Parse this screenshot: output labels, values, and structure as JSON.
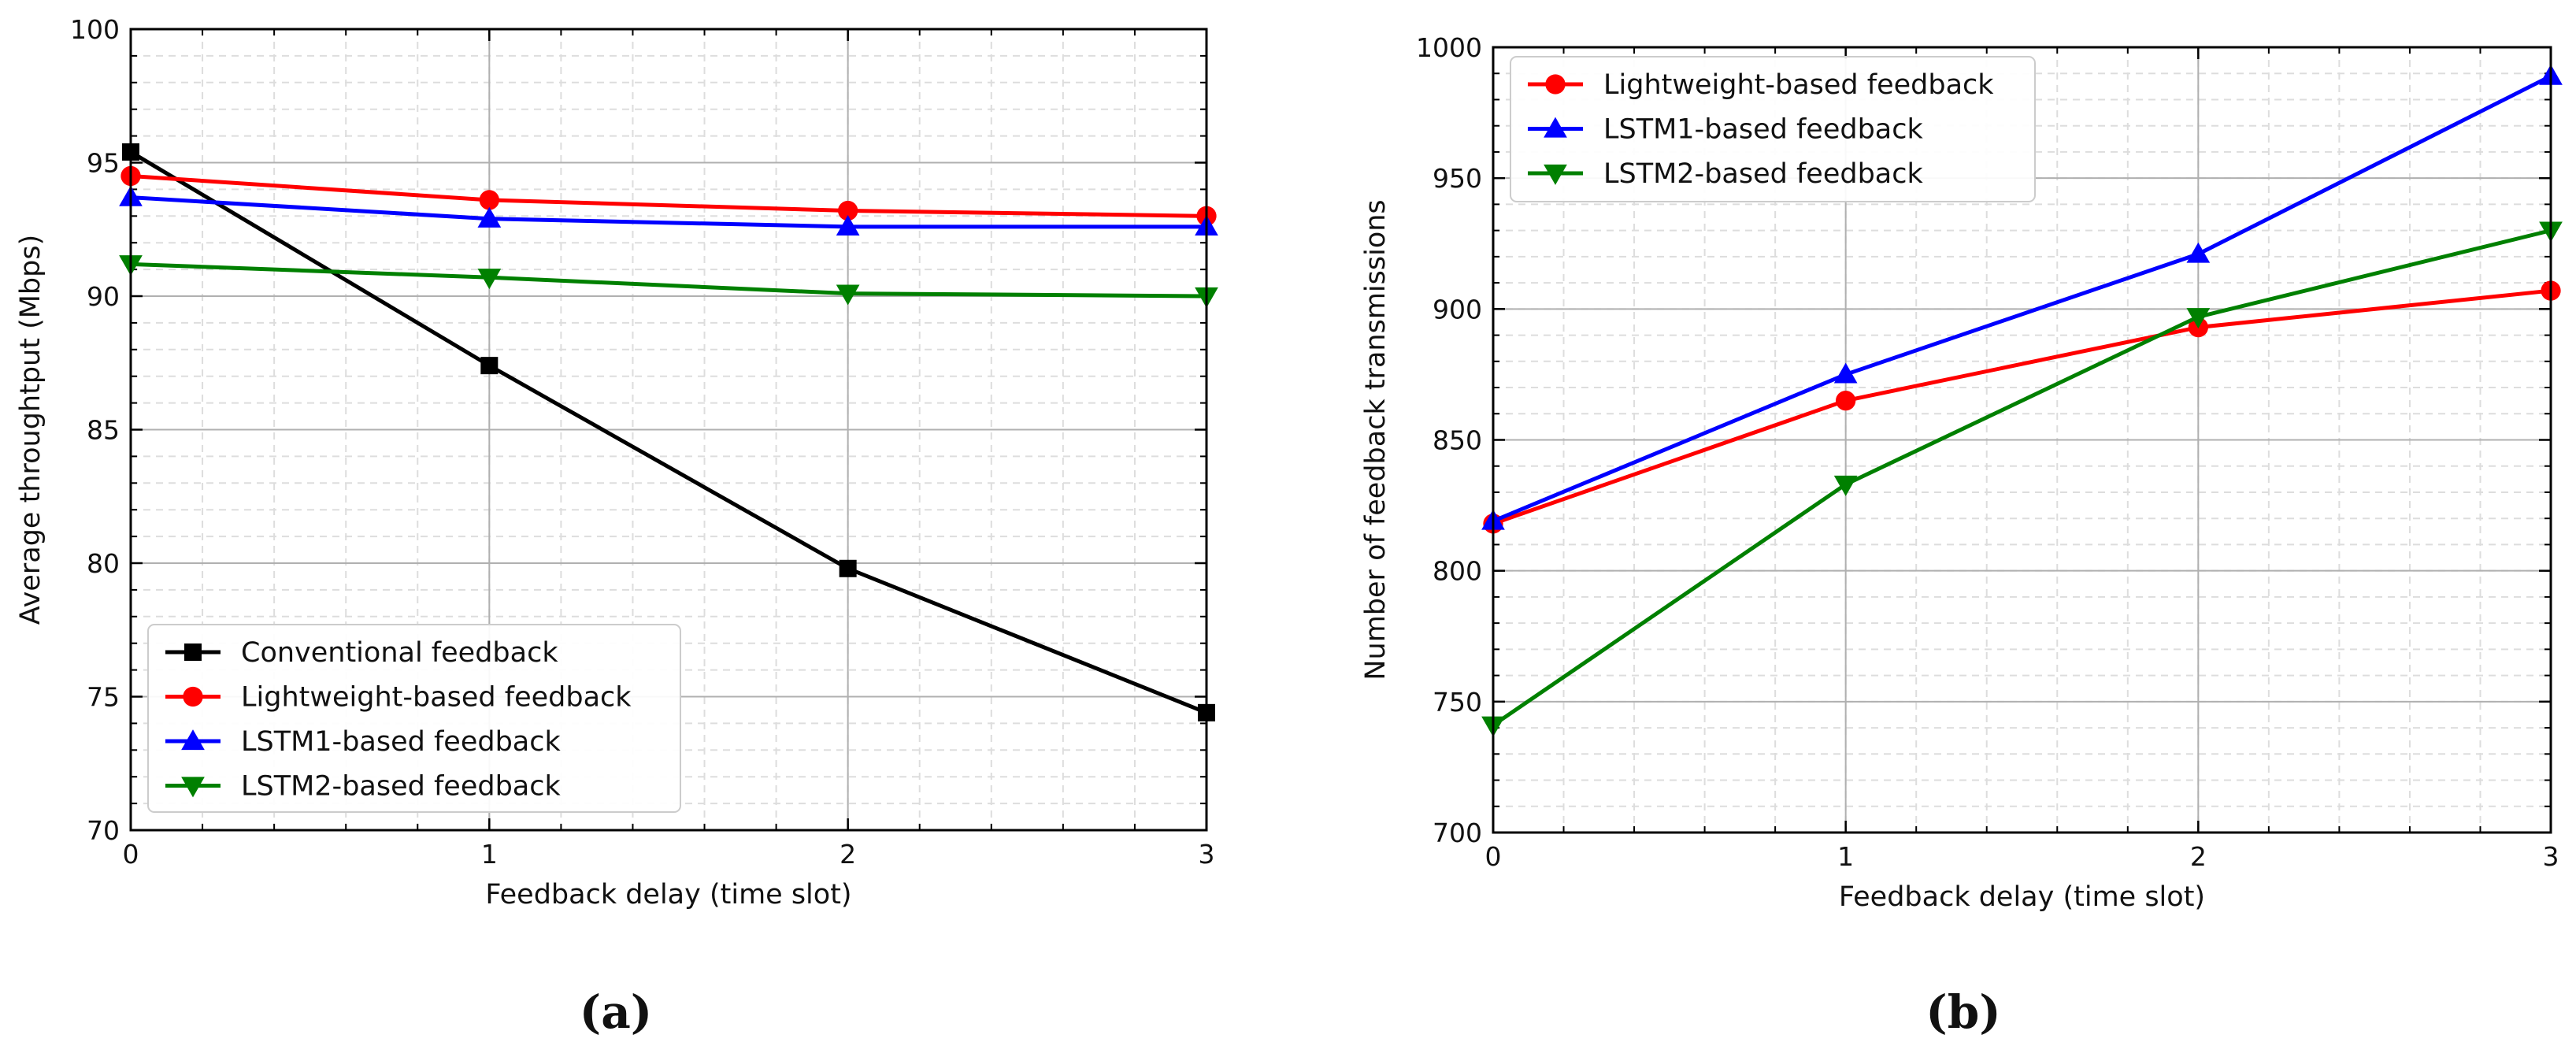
{
  "chart_data": [
    {
      "type": "line",
      "panel_label": "(a)",
      "xlabel": "Feedback delay (time slot)",
      "ylabel": "Average throughtput (Mbps)",
      "xlim": [
        0,
        3
      ],
      "ylim": [
        70,
        100
      ],
      "xticks": [
        0,
        1,
        2,
        3
      ],
      "yticks": [
        70,
        75,
        80,
        85,
        90,
        95,
        100
      ],
      "grid": true,
      "legend_position": "lower-left",
      "x": [
        0,
        1,
        2,
        3
      ],
      "series": [
        {
          "name": "Conventional feedback",
          "color": "#000000",
          "marker": "square",
          "values": [
            95.4,
            87.4,
            79.8,
            74.4
          ]
        },
        {
          "name": "Lightweight-based feedback",
          "color": "#ff0000",
          "marker": "circle",
          "values": [
            94.5,
            93.6,
            93.2,
            93.0
          ]
        },
        {
          "name": "LSTM1-based feedback",
          "color": "#0000ff",
          "marker": "triangle-up",
          "values": [
            93.7,
            92.9,
            92.6,
            92.6
          ]
        },
        {
          "name": "LSTM2-based feedback",
          "color": "#008000",
          "marker": "triangle-down",
          "values": [
            91.2,
            90.7,
            90.1,
            90.0
          ]
        }
      ]
    },
    {
      "type": "line",
      "panel_label": "(b)",
      "xlabel": "Feedback delay (time slot)",
      "ylabel": "Number of feedback transmissions",
      "xlim": [
        0,
        3
      ],
      "ylim": [
        700,
        1000
      ],
      "xticks": [
        0,
        1,
        2,
        3
      ],
      "yticks": [
        700,
        750,
        800,
        850,
        900,
        950,
        1000
      ],
      "grid": true,
      "legend_position": "upper-left",
      "x": [
        0,
        1,
        2,
        3
      ],
      "series": [
        {
          "name": "Lightweight-based feedback",
          "color": "#ff0000",
          "marker": "circle",
          "values": [
            818,
            865,
            893,
            907
          ]
        },
        {
          "name": "LSTM1-based feedback",
          "color": "#0000ff",
          "marker": "triangle-up",
          "values": [
            819,
            875,
            921,
            989
          ]
        },
        {
          "name": "LSTM2-based feedback",
          "color": "#008000",
          "marker": "triangle-down",
          "values": [
            741,
            833,
            897,
            930
          ]
        }
      ]
    }
  ]
}
